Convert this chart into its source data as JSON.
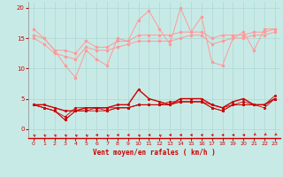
{
  "background_color": "#c8eae6",
  "grid_color": "#aad8d4",
  "xlabel": "Vent moyen/en rafales ( km/h )",
  "xlabel_color": "#cc0000",
  "tick_color": "#cc0000",
  "xlim": [
    -0.5,
    23.5
  ],
  "ylim": [
    -1.5,
    21
  ],
  "yticks": [
    0,
    5,
    10,
    15,
    20
  ],
  "xticks": [
    0,
    1,
    2,
    3,
    4,
    5,
    6,
    7,
    8,
    9,
    10,
    11,
    12,
    13,
    14,
    15,
    16,
    17,
    18,
    19,
    20,
    21,
    22,
    23
  ],
  "lines_salmon": [
    [
      16.5,
      15.0,
      13.0,
      10.5,
      8.5,
      13.0,
      11.5,
      10.5,
      15.0,
      14.5,
      18.0,
      19.5,
      16.5,
      14.0,
      20.0,
      16.0,
      18.5,
      11.0,
      10.5,
      15.0,
      16.0,
      13.0,
      16.5,
      16.5
    ],
    [
      15.5,
      15.0,
      13.0,
      13.0,
      12.5,
      14.5,
      13.5,
      13.5,
      14.5,
      14.5,
      15.5,
      15.5,
      15.5,
      15.5,
      16.0,
      16.0,
      16.0,
      15.0,
      15.5,
      15.5,
      15.5,
      16.0,
      16.0,
      16.5
    ],
    [
      15.0,
      14.0,
      12.5,
      12.0,
      11.5,
      13.5,
      13.0,
      13.0,
      13.5,
      14.0,
      14.5,
      14.5,
      14.5,
      14.5,
      15.0,
      15.5,
      15.5,
      14.0,
      14.5,
      15.0,
      15.0,
      15.5,
      15.5,
      16.0
    ]
  ],
  "lines_red": [
    [
      4.0,
      4.0,
      3.5,
      3.0,
      3.0,
      3.5,
      3.5,
      3.5,
      4.0,
      4.0,
      6.5,
      5.0,
      4.5,
      4.0,
      5.0,
      5.0,
      5.0,
      4.0,
      3.5,
      4.5,
      5.0,
      4.0,
      4.0,
      5.0
    ],
    [
      4.0,
      3.5,
      3.0,
      2.0,
      3.5,
      3.5,
      3.5,
      3.5,
      3.5,
      3.5,
      4.0,
      4.0,
      4.0,
      4.5,
      4.5,
      4.5,
      4.5,
      4.0,
      3.5,
      4.0,
      4.5,
      4.0,
      4.0,
      5.0
    ],
    [
      4.0,
      3.5,
      3.0,
      1.5,
      3.0,
      3.0,
      3.0,
      3.0,
      3.5,
      3.5,
      4.0,
      4.0,
      4.0,
      4.0,
      4.5,
      4.5,
      4.5,
      3.5,
      3.0,
      4.0,
      4.0,
      4.0,
      4.0,
      5.5
    ],
    [
      4.0,
      3.5,
      3.0,
      1.5,
      3.0,
      3.0,
      3.5,
      3.0,
      3.5,
      3.5,
      4.0,
      4.0,
      4.0,
      4.0,
      4.5,
      4.5,
      4.5,
      3.5,
      3.0,
      4.0,
      4.0,
      4.0,
      3.5,
      5.0
    ]
  ],
  "salmon_color": "#ff9999",
  "red_color": "#cc0000",
  "arrow_angles_deg": [
    225,
    225,
    225,
    225,
    225,
    225,
    270,
    225,
    270,
    270,
    225,
    270,
    225,
    270,
    270,
    270,
    270,
    270,
    270,
    270,
    270,
    315,
    315,
    315
  ]
}
